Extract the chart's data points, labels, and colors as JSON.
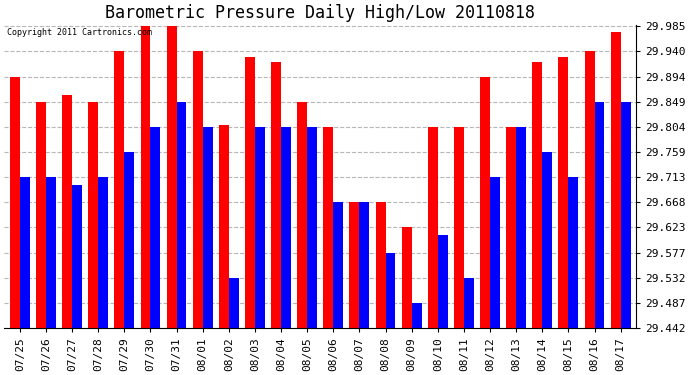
{
  "title": "Barometric Pressure Daily High/Low 20110818",
  "copyright": "Copyright 2011 Cartronics.com",
  "background_color": "#ffffff",
  "dates": [
    "07/25",
    "07/26",
    "07/27",
    "07/28",
    "07/29",
    "07/30",
    "07/31",
    "08/01",
    "08/02",
    "08/03",
    "08/04",
    "08/05",
    "08/06",
    "08/07",
    "08/08",
    "08/09",
    "08/10",
    "08/11",
    "08/12",
    "08/13",
    "08/14",
    "08/15",
    "08/16",
    "08/17"
  ],
  "highs": [
    29.894,
    29.849,
    29.862,
    29.849,
    29.94,
    29.985,
    29.985,
    29.94,
    29.808,
    29.93,
    29.921,
    29.849,
    29.804,
    29.668,
    29.668,
    29.623,
    29.804,
    29.804,
    29.894,
    29.804,
    29.921,
    29.93,
    29.94,
    29.975
  ],
  "lows": [
    29.713,
    29.713,
    29.7,
    29.713,
    29.759,
    29.804,
    29.849,
    29.804,
    29.532,
    29.804,
    29.804,
    29.804,
    29.668,
    29.668,
    29.577,
    29.487,
    29.61,
    29.532,
    29.713,
    29.804,
    29.759,
    29.713,
    29.849,
    29.849
  ],
  "high_color": "#ff0000",
  "low_color": "#0000ff",
  "yticks": [
    29.442,
    29.487,
    29.532,
    29.577,
    29.623,
    29.668,
    29.713,
    29.759,
    29.804,
    29.849,
    29.894,
    29.94,
    29.985
  ],
  "ymin": 29.442,
  "ymax": 29.985,
  "bar_width": 0.38,
  "grid_color": "#b0b0b0",
  "grid_style": "--",
  "title_fontsize": 12,
  "tick_fontsize": 8
}
